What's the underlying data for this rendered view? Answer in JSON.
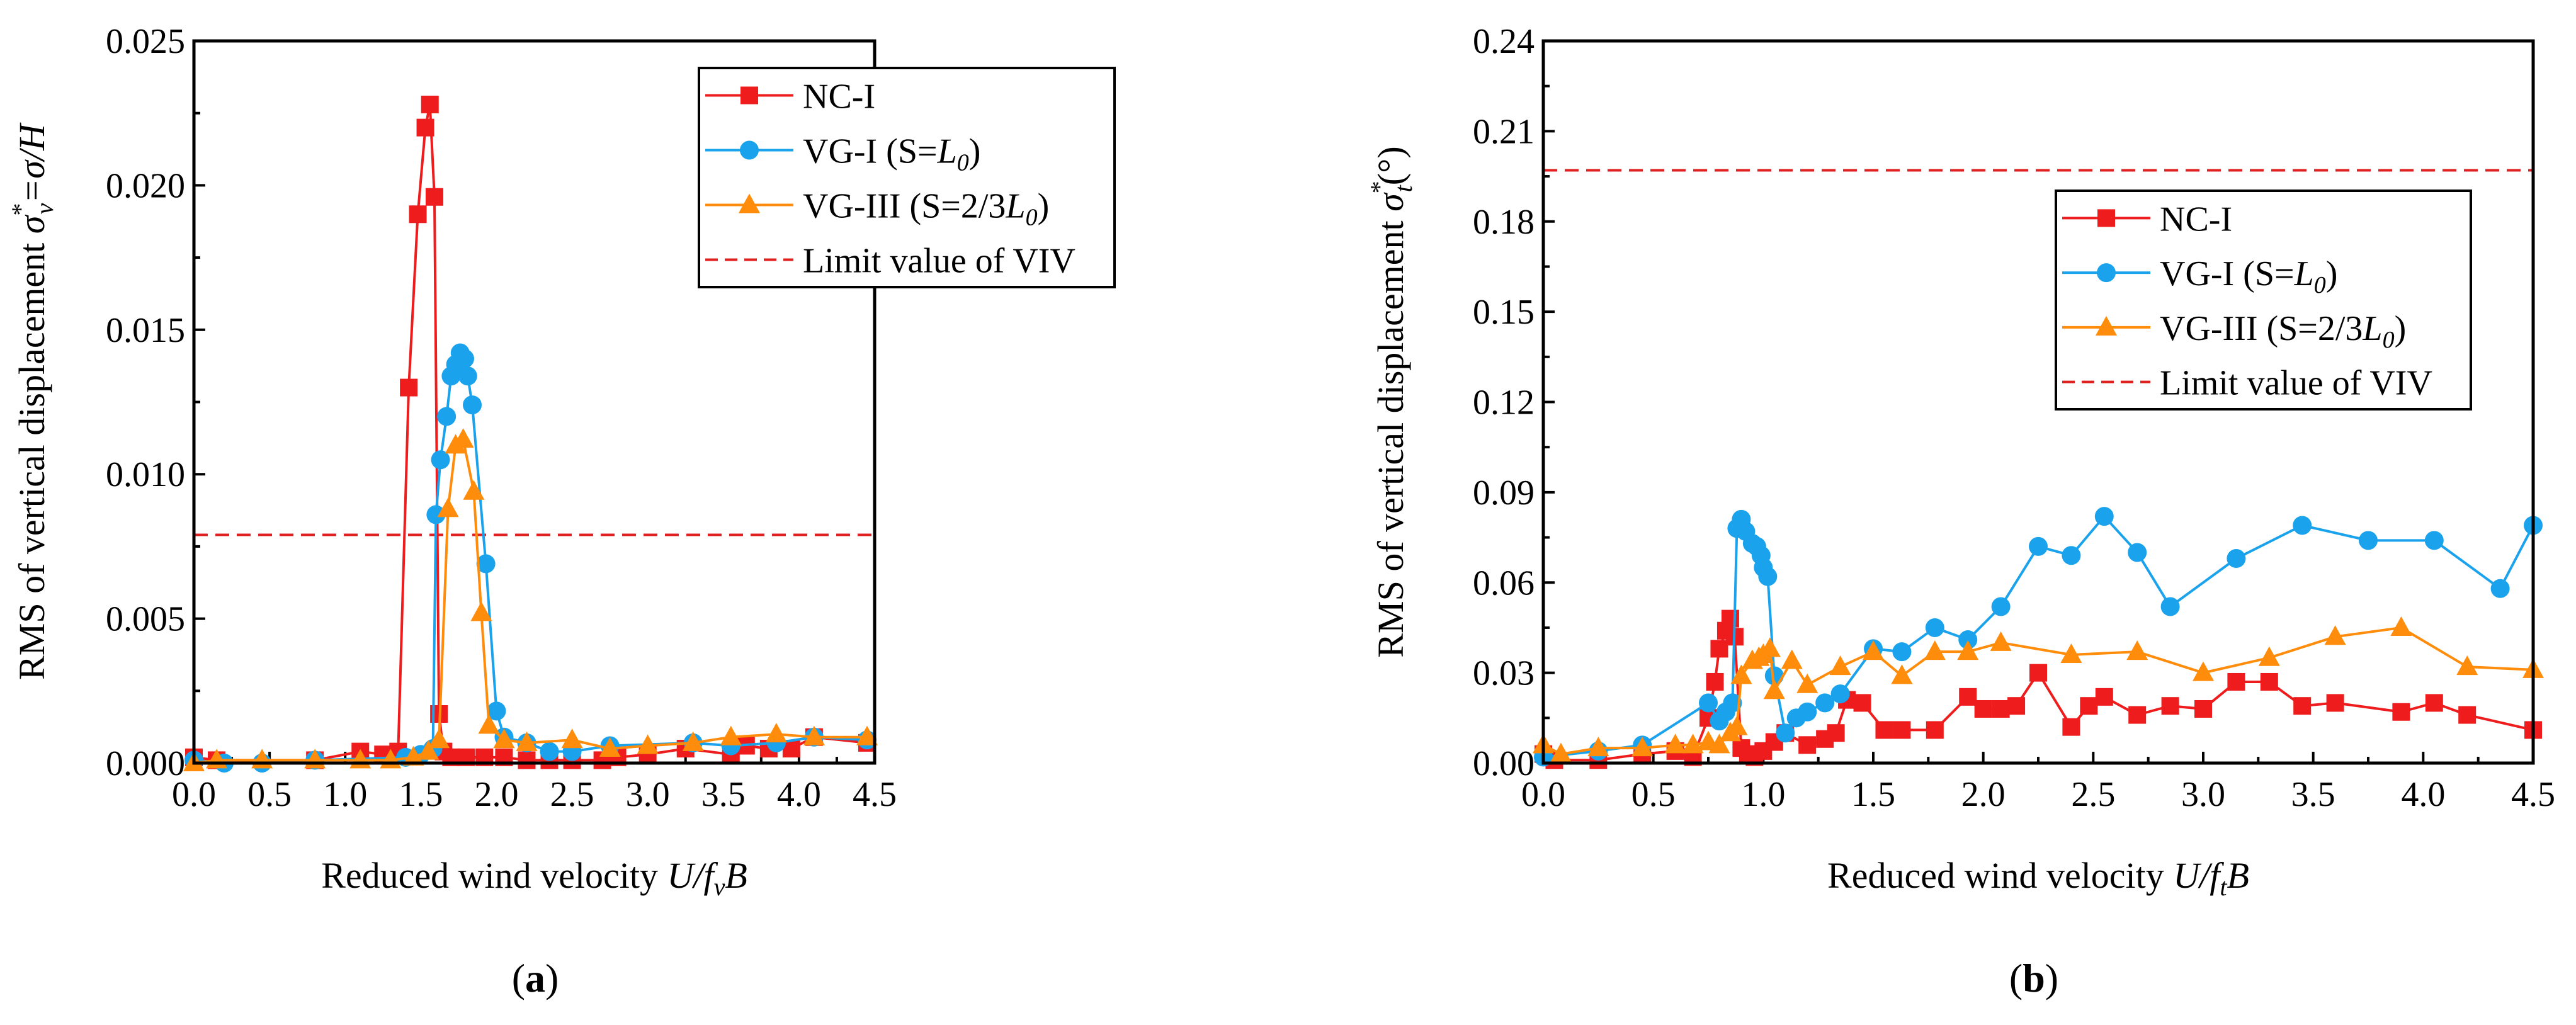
{
  "chart_data": [
    {
      "type": "line",
      "panel_label": "(a)",
      "panel_letter": "a",
      "xlabel": "Reduced wind velocity ",
      "xlabel_symbol": "U/f",
      "xlabel_sub": "v",
      "xlabel_tail": "B",
      "ylabel": "RMS of vertical displacement ",
      "ylabel_symbol": "σ",
      "ylabel_sup": "*",
      "ylabel_sub": "v",
      "ylabel_tail": "=σ/H",
      "xlim": [
        0,
        4.5
      ],
      "ylim": [
        0,
        0.025
      ],
      "xticks": [
        "0.0",
        "0.5",
        "1.0",
        "1.5",
        "2.0",
        "2.5",
        "3.0",
        "3.5",
        "4.0",
        "4.5"
      ],
      "yticks": [
        "0.000",
        "0.005",
        "0.010",
        "0.015",
        "0.020",
        "0.025"
      ],
      "legend_position": "top-right",
      "limit_value": 0.0079,
      "limit_label": "Limit value of VIV",
      "series": [
        {
          "name": "NC-I",
          "legend_main": "NC-I",
          "legend_sub": "",
          "legend_tail": "",
          "color": "#ee1c1c",
          "marker": "square",
          "x": [
            0,
            0.15,
            0.8,
            1.1,
            1.25,
            1.35,
            1.42,
            1.48,
            1.53,
            1.56,
            1.59,
            1.62,
            1.65,
            1.7,
            1.8,
            1.92,
            2.05,
            2.2,
            2.35,
            2.5,
            2.7,
            2.8,
            3.0,
            3.25,
            3.55,
            3.65,
            3.8,
            3.95,
            4.1,
            4.45
          ],
          "y": [
            0.0002,
            0.0001,
            0.0001,
            0.0004,
            0.0003,
            0.0004,
            0.013,
            0.019,
            0.022,
            0.0228,
            0.0196,
            0.0017,
            0.0004,
            0.0002,
            0.0002,
            0.0002,
            0.0002,
            0.0001,
            0.0001,
            0.0001,
            0.0001,
            0.0002,
            0.0003,
            0.0005,
            0.0003,
            0.0006,
            0.0005,
            0.0005,
            0.0009,
            0.0007
          ]
        },
        {
          "name": "VG-I (S=L0)",
          "legend_main": "VG-I (S=",
          "legend_sub": "0",
          "legend_tail": ")",
          "legend_ital": "L",
          "color": "#1aa3ec",
          "marker": "circle",
          "x": [
            0,
            0.2,
            0.45,
            0.8,
            1.4,
            1.5,
            1.58,
            1.6,
            1.63,
            1.67,
            1.7,
            1.73,
            1.76,
            1.79,
            1.81,
            1.84,
            1.93,
            2.0,
            2.05,
            2.2,
            2.35,
            2.5,
            2.75,
            3.3,
            3.55,
            3.85,
            4.1,
            4.45
          ],
          "y": [
            0.0001,
            0,
            0,
            0.0001,
            0.0002,
            0.0003,
            0.0005,
            0.0086,
            0.0105,
            0.012,
            0.0134,
            0.0138,
            0.0142,
            0.014,
            0.0134,
            0.0124,
            0.0069,
            0.0018,
            0.0009,
            0.0007,
            0.0004,
            0.0004,
            0.0006,
            0.0007,
            0.0006,
            0.0007,
            0.0009,
            0.0008
          ]
        },
        {
          "name": "VG-III (S=2/3L0)",
          "legend_main": "VG-III (S=2/3",
          "legend_sub": "0",
          "legend_tail": ")",
          "legend_ital": "L",
          "color": "#ff8c0a",
          "marker": "triangle",
          "x": [
            0,
            0.15,
            0.45,
            0.8,
            1.1,
            1.3,
            1.45,
            1.55,
            1.62,
            1.68,
            1.73,
            1.78,
            1.85,
            1.9,
            1.95,
            2.05,
            2.2,
            2.5,
            2.75,
            3.0,
            3.3,
            3.55,
            3.85,
            4.1,
            4.45
          ],
          "y": [
            0,
            0.0001,
            0.0001,
            0.0001,
            0.0001,
            0.0001,
            0.0002,
            0.0004,
            0.0008,
            0.0088,
            0.011,
            0.0112,
            0.0094,
            0.0052,
            0.0013,
            0.0008,
            0.0007,
            0.0008,
            0.0005,
            0.0006,
            0.0007,
            0.0009,
            0.001,
            0.0009,
            0.0009
          ]
        }
      ]
    },
    {
      "type": "line",
      "panel_label": "(b)",
      "panel_letter": "b",
      "xlabel": "Reduced wind velocity ",
      "xlabel_symbol": "U/f",
      "xlabel_sub": "t",
      "xlabel_tail": "B",
      "ylabel": "RMS of vertical displacement ",
      "ylabel_symbol": "σ",
      "ylabel_sup": "*",
      "ylabel_sub": "t",
      "ylabel_tail": "(°)",
      "xlim": [
        0,
        4.5
      ],
      "ylim": [
        0,
        0.24
      ],
      "xticks": [
        "0.0",
        "0.5",
        "1.0",
        "1.5",
        "2.0",
        "2.5",
        "3.0",
        "3.5",
        "4.0",
        "4.5"
      ],
      "yticks": [
        "0.00",
        "0.03",
        "0.06",
        "0.09",
        "0.12",
        "0.15",
        "0.18",
        "0.21",
        "0.24"
      ],
      "legend_position": "center-right",
      "limit_value": 0.197,
      "limit_label": "Limit value of VIV",
      "series": [
        {
          "name": "NC-I",
          "legend_main": "NC-I",
          "legend_sub": "",
          "legend_tail": "",
          "color": "#ee1c1c",
          "marker": "square",
          "x": [
            0,
            0.05,
            0.25,
            0.45,
            0.6,
            0.68,
            0.75,
            0.78,
            0.8,
            0.83,
            0.85,
            0.87,
            0.9,
            0.93,
            0.96,
            1.0,
            1.05,
            1.1,
            1.2,
            1.28,
            1.33,
            1.38,
            1.45,
            1.55,
            1.63,
            1.78,
            1.93,
            2.0,
            2.08,
            2.15,
            2.25,
            2.4,
            2.48,
            2.55,
            2.7,
            2.85,
            3.0,
            3.15,
            3.3,
            3.45,
            3.6,
            3.9,
            4.05,
            4.2,
            4.5
          ],
          "y": [
            0.003,
            0.001,
            0.001,
            0.003,
            0.004,
            0.002,
            0.015,
            0.027,
            0.038,
            0.044,
            0.048,
            0.042,
            0.005,
            0.003,
            0.002,
            0.004,
            0.007,
            0.01,
            0.006,
            0.008,
            0.01,
            0.021,
            0.02,
            0.011,
            0.011,
            0.011,
            0.022,
            0.018,
            0.018,
            0.019,
            0.03,
            0.012,
            0.019,
            0.022,
            0.016,
            0.019,
            0.018,
            0.027,
            0.027,
            0.019,
            0.02,
            0.017,
            0.02,
            0.016,
            0.011
          ]
        },
        {
          "name": "VG-I (S=L0)",
          "legend_main": "VG-I (S=",
          "legend_sub": "0",
          "legend_tail": ")",
          "legend_ital": "L",
          "color": "#1aa3ec",
          "marker": "circle",
          "x": [
            0,
            0.25,
            0.45,
            0.75,
            0.8,
            0.83,
            0.86,
            0.88,
            0.9,
            0.92,
            0.95,
            0.97,
            0.99,
            1.0,
            1.02,
            1.05,
            1.1,
            1.15,
            1.2,
            1.28,
            1.35,
            1.5,
            1.63,
            1.78,
            1.93,
            2.08,
            2.25,
            2.4,
            2.55,
            2.7,
            2.85,
            3.15,
            3.45,
            3.75,
            4.05,
            4.35,
            4.5
          ],
          "y": [
            0.002,
            0.004,
            0.006,
            0.02,
            0.014,
            0.017,
            0.02,
            0.078,
            0.081,
            0.077,
            0.073,
            0.072,
            0.069,
            0.065,
            0.062,
            0.029,
            0.01,
            0.015,
            0.017,
            0.02,
            0.023,
            0.038,
            0.037,
            0.045,
            0.041,
            0.052,
            0.072,
            0.069,
            0.082,
            0.07,
            0.052,
            0.068,
            0.079,
            0.074,
            0.074,
            0.058,
            0.079
          ]
        },
        {
          "name": "VG-III (S=2/3L0)",
          "legend_main": "VG-III (S=2/3",
          "legend_sub": "0",
          "legend_tail": ")",
          "legend_ital": "L",
          "color": "#ff8c0a",
          "marker": "triangle",
          "x": [
            0,
            0.08,
            0.25,
            0.45,
            0.6,
            0.68,
            0.75,
            0.8,
            0.85,
            0.88,
            0.9,
            0.95,
            0.98,
            1.0,
            1.03,
            1.05,
            1.13,
            1.2,
            1.35,
            1.5,
            1.63,
            1.78,
            1.93,
            2.08,
            2.4,
            2.7,
            3.0,
            3.3,
            3.6,
            3.9,
            4.2,
            4.5
          ],
          "y": [
            0.006,
            0.003,
            0.005,
            0.005,
            0.006,
            0.006,
            0.007,
            0.006,
            0.01,
            0.012,
            0.029,
            0.034,
            0.035,
            0.036,
            0.038,
            0.024,
            0.034,
            0.026,
            0.032,
            0.037,
            0.029,
            0.037,
            0.037,
            0.04,
            0.036,
            0.037,
            0.03,
            0.035,
            0.042,
            0.045,
            0.032,
            0.031
          ]
        }
      ]
    }
  ]
}
